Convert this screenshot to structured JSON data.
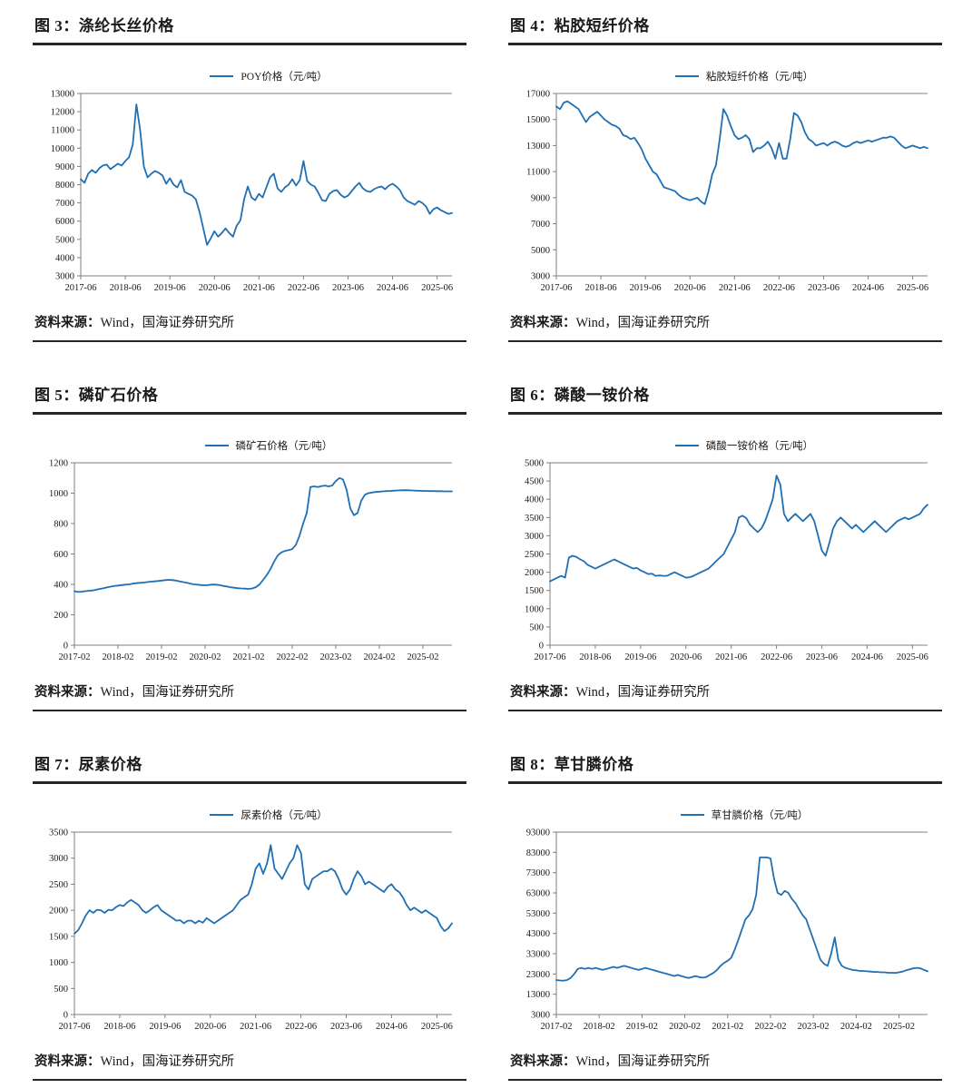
{
  "page": {
    "background": "#ffffff"
  },
  "colors": {
    "line": "#1F6FB5",
    "axis": "#7F7F7F",
    "rule": "#262626",
    "text": "#1A1A1A"
  },
  "source_note": {
    "label": "资料来源：",
    "text": "Wind，国海证券研究所"
  },
  "figures": [
    {
      "title": "图 3：涤纶长丝价格"
    },
    {
      "title": "图 4：粘胶短纤价格"
    },
    {
      "title": "图 5：磷矿石价格"
    },
    {
      "title": "图 6：磷酸一铵价格"
    },
    {
      "title": "图 7：尿素价格"
    },
    {
      "title": "图 8：草甘膦价格"
    }
  ],
  "chart_data": [
    {
      "type": "line",
      "title": "图 3：涤纶长丝价格",
      "legend": "POY价格（元/吨）",
      "unit": "元/吨",
      "x_start": "2017-06",
      "x_frequency": "monthly",
      "x_tick_labels": [
        "2017-06",
        "2018-06",
        "2019-06",
        "2020-06",
        "2021-06",
        "2022-06",
        "2023-06",
        "2024-06",
        "2025-06"
      ],
      "x_tick_positions": [
        0,
        12,
        24,
        36,
        48,
        60,
        72,
        84,
        96
      ],
      "ylim": [
        3000,
        13000
      ],
      "ytick_interval": 1000,
      "grid": false,
      "legend_position": "top-center",
      "values": [
        8300,
        8100,
        8600,
        8800,
        8650,
        8900,
        9050,
        9100,
        8850,
        9000,
        9150,
        9050,
        9300,
        9500,
        10200,
        12400,
        11000,
        9000,
        8400,
        8600,
        8750,
        8650,
        8500,
        8050,
        8350,
        8000,
        7850,
        8250,
        7600,
        7500,
        7400,
        7200,
        6500,
        5600,
        4700,
        5050,
        5450,
        5150,
        5350,
        5600,
        5350,
        5150,
        5750,
        6050,
        7200,
        7900,
        7300,
        7150,
        7500,
        7300,
        7850,
        8400,
        8600,
        7800,
        7600,
        7850,
        8000,
        8300,
        7950,
        8250,
        9300,
        8200,
        8000,
        7900,
        7550,
        7150,
        7100,
        7500,
        7650,
        7700,
        7450,
        7300,
        7400,
        7650,
        7900,
        8100,
        7800,
        7650,
        7600,
        7750,
        7850,
        7900,
        7750,
        7950,
        8050,
        7900,
        7700,
        7300,
        7100,
        7000,
        6900,
        7100,
        7000,
        6800,
        6400,
        6650,
        6750,
        6600,
        6500,
        6400,
        6450
      ]
    },
    {
      "type": "line",
      "title": "图 4：粘胶短纤价格",
      "legend": "粘胶短纤价格（元/吨）",
      "unit": "元/吨",
      "x_start": "2017-06",
      "x_frequency": "monthly",
      "x_tick_labels": [
        "2017-06",
        "2018-06",
        "2019-06",
        "2020-06",
        "2021-06",
        "2022-06",
        "2023-06",
        "2024-06",
        "2025-06"
      ],
      "x_tick_positions": [
        0,
        12,
        24,
        36,
        48,
        60,
        72,
        84,
        96
      ],
      "ylim": [
        3000,
        17000
      ],
      "ytick_interval": 2000,
      "grid": false,
      "legend_position": "top-center",
      "values": [
        16000,
        15800,
        16300,
        16400,
        16200,
        16000,
        15800,
        15300,
        14800,
        15200,
        15400,
        15600,
        15300,
        15000,
        14800,
        14600,
        14500,
        14300,
        13800,
        13700,
        13500,
        13600,
        13200,
        12700,
        12000,
        11500,
        11000,
        10800,
        10300,
        9800,
        9700,
        9600,
        9500,
        9200,
        9000,
        8900,
        8800,
        8900,
        9000,
        8700,
        8500,
        9500,
        10800,
        11500,
        13500,
        15800,
        15300,
        14500,
        13800,
        13500,
        13600,
        13800,
        13500,
        12500,
        12800,
        12800,
        13000,
        13300,
        12800,
        12000,
        13200,
        12000,
        12000,
        13500,
        15500,
        15300,
        14800,
        14000,
        13500,
        13300,
        13000,
        13100,
        13200,
        13000,
        13200,
        13300,
        13200,
        13000,
        12900,
        13000,
        13200,
        13300,
        13200,
        13300,
        13400,
        13300,
        13400,
        13500,
        13600,
        13600,
        13700,
        13600,
        13300,
        13000,
        12800,
        12900,
        13000,
        12900,
        12800,
        12900,
        12800
      ]
    },
    {
      "type": "line",
      "title": "图 5：磷矿石价格",
      "legend": "磷矿石价格（元/吨）",
      "unit": "元/吨",
      "x_start": "2017-02",
      "x_frequency": "monthly",
      "x_tick_labels": [
        "2017-02",
        "2018-02",
        "2019-02",
        "2020-02",
        "2021-02",
        "2022-02",
        "2023-02",
        "2024-02",
        "2025-02"
      ],
      "x_tick_positions": [
        0,
        12,
        24,
        36,
        48,
        60,
        72,
        84,
        96
      ],
      "ylim": [
        0,
        1200
      ],
      "ytick_interval": 200,
      "grid": false,
      "legend_position": "top-center",
      "values": [
        355,
        350,
        352,
        355,
        358,
        360,
        365,
        370,
        375,
        380,
        385,
        390,
        392,
        395,
        398,
        400,
        405,
        408,
        410,
        412,
        415,
        418,
        420,
        422,
        425,
        428,
        430,
        428,
        425,
        420,
        415,
        410,
        405,
        400,
        398,
        395,
        394,
        396,
        399,
        398,
        395,
        390,
        386,
        381,
        378,
        375,
        373,
        372,
        370,
        373,
        382,
        400,
        430,
        462,
        500,
        550,
        590,
        610,
        620,
        625,
        632,
        660,
        720,
        800,
        870,
        1040,
        1045,
        1040,
        1046,
        1050,
        1045,
        1050,
        1080,
        1100,
        1090,
        1020,
        900,
        855,
        870,
        950,
        990,
        1000,
        1005,
        1008,
        1010,
        1012,
        1014,
        1015,
        1017,
        1018,
        1019,
        1020,
        1019,
        1018,
        1017,
        1016,
        1015,
        1015,
        1014,
        1014,
        1013,
        1013,
        1012,
        1012,
        1012
      ]
    },
    {
      "type": "line",
      "title": "图 6：磷酸一铵价格",
      "legend": "磷酸一铵价格（元/吨）",
      "unit": "元/吨",
      "x_start": "2017-06",
      "x_frequency": "monthly",
      "x_tick_labels": [
        "2017-06",
        "2018-06",
        "2019-06",
        "2020-06",
        "2021-06",
        "2022-06",
        "2023-06",
        "2024-06",
        "2025-06"
      ],
      "x_tick_positions": [
        0,
        12,
        24,
        36,
        48,
        60,
        72,
        84,
        96
      ],
      "ylim": [
        0,
        5000
      ],
      "ytick_interval": 500,
      "grid": false,
      "legend_position": "top-center",
      "values": [
        1750,
        1800,
        1850,
        1900,
        1850,
        2400,
        2450,
        2420,
        2350,
        2300,
        2200,
        2150,
        2100,
        2150,
        2200,
        2250,
        2300,
        2350,
        2300,
        2250,
        2200,
        2150,
        2100,
        2120,
        2050,
        2000,
        1950,
        1960,
        1900,
        1910,
        1900,
        1900,
        1950,
        2000,
        1950,
        1900,
        1850,
        1860,
        1900,
        1950,
        2000,
        2050,
        2100,
        2200,
        2300,
        2400,
        2500,
        2700,
        2900,
        3100,
        3500,
        3550,
        3480,
        3300,
        3200,
        3100,
        3200,
        3400,
        3700,
        4000,
        4650,
        4400,
        3600,
        3400,
        3500,
        3600,
        3500,
        3400,
        3500,
        3600,
        3400,
        3000,
        2600,
        2450,
        2800,
        3200,
        3400,
        3500,
        3400,
        3300,
        3200,
        3300,
        3200,
        3100,
        3200,
        3300,
        3400,
        3300,
        3200,
        3100,
        3200,
        3300,
        3400,
        3450,
        3500,
        3450,
        3500,
        3550,
        3600,
        3750,
        3850
      ]
    },
    {
      "type": "line",
      "title": "图 7：尿素价格",
      "legend": "尿素价格（元/吨）",
      "unit": "元/吨",
      "x_start": "2017-06",
      "x_frequency": "monthly",
      "x_tick_labels": [
        "2017-06",
        "2018-06",
        "2019-06",
        "2020-06",
        "2021-06",
        "2022-06",
        "2023-06",
        "2024-06",
        "2025-06"
      ],
      "x_tick_positions": [
        0,
        12,
        24,
        36,
        48,
        60,
        72,
        84,
        96
      ],
      "ylim": [
        0,
        3500
      ],
      "ytick_interval": 500,
      "grid": false,
      "legend_position": "top-center",
      "values": [
        1550,
        1620,
        1750,
        1900,
        2000,
        1950,
        2010,
        2000,
        1950,
        2010,
        2000,
        2060,
        2100,
        2080,
        2150,
        2200,
        2150,
        2100,
        2000,
        1950,
        2000,
        2060,
        2100,
        2000,
        1950,
        1900,
        1850,
        1800,
        1810,
        1750,
        1800,
        1800,
        1750,
        1800,
        1760,
        1850,
        1800,
        1750,
        1800,
        1850,
        1900,
        1950,
        2000,
        2100,
        2200,
        2250,
        2300,
        2500,
        2800,
        2900,
        2700,
        2900,
        3250,
        2800,
        2700,
        2600,
        2750,
        2900,
        3000,
        3250,
        3100,
        2500,
        2400,
        2600,
        2650,
        2700,
        2750,
        2750,
        2800,
        2750,
        2600,
        2400,
        2300,
        2400,
        2600,
        2750,
        2650,
        2500,
        2550,
        2500,
        2450,
        2400,
        2350,
        2450,
        2500,
        2400,
        2350,
        2250,
        2100,
        2000,
        2050,
        2000,
        1950,
        2000,
        1950,
        1900,
        1850,
        1700,
        1600,
        1650,
        1750
      ]
    },
    {
      "type": "line",
      "title": "图 8：草甘膦价格",
      "legend": "草甘膦价格（元/吨）",
      "unit": "元/吨",
      "x_start": "2017-02",
      "x_frequency": "monthly",
      "x_tick_labels": [
        "2017-02",
        "2018-02",
        "2019-02",
        "2020-02",
        "2021-02",
        "2022-02",
        "2023-02",
        "2024-02",
        "2025-02"
      ],
      "x_tick_positions": [
        0,
        12,
        24,
        36,
        48,
        60,
        72,
        84,
        96
      ],
      "ylim": [
        3000,
        93000
      ],
      "ytick_interval": 10000,
      "grid": false,
      "legend_position": "top-center",
      "values": [
        20000,
        19800,
        19700,
        20000,
        21000,
        23000,
        25500,
        26000,
        25500,
        26000,
        25500,
        26000,
        25500,
        25000,
        25500,
        26000,
        26500,
        26000,
        26500,
        27000,
        26500,
        26000,
        25500,
        25000,
        25500,
        26000,
        25500,
        25000,
        24500,
        24000,
        23500,
        23000,
        22500,
        22000,
        22500,
        22000,
        21500,
        21000,
        21500,
        22000,
        21500,
        21200,
        21500,
        22500,
        23500,
        25000,
        27000,
        28500,
        29500,
        31000,
        35000,
        40000,
        45000,
        50000,
        52000,
        55000,
        62000,
        80500,
        80500,
        80500,
        80000,
        70000,
        63000,
        62000,
        64000,
        63000,
        60000,
        58000,
        55000,
        52000,
        50000,
        45000,
        40000,
        35000,
        30000,
        28000,
        27000,
        33000,
        41000,
        30000,
        27000,
        26000,
        25500,
        25000,
        24800,
        24500,
        24500,
        24300,
        24200,
        24000,
        24000,
        23800,
        23800,
        23600,
        23600,
        23500,
        23800,
        24200,
        24800,
        25300,
        25800,
        26000,
        25800,
        25000,
        24300
      ]
    }
  ]
}
